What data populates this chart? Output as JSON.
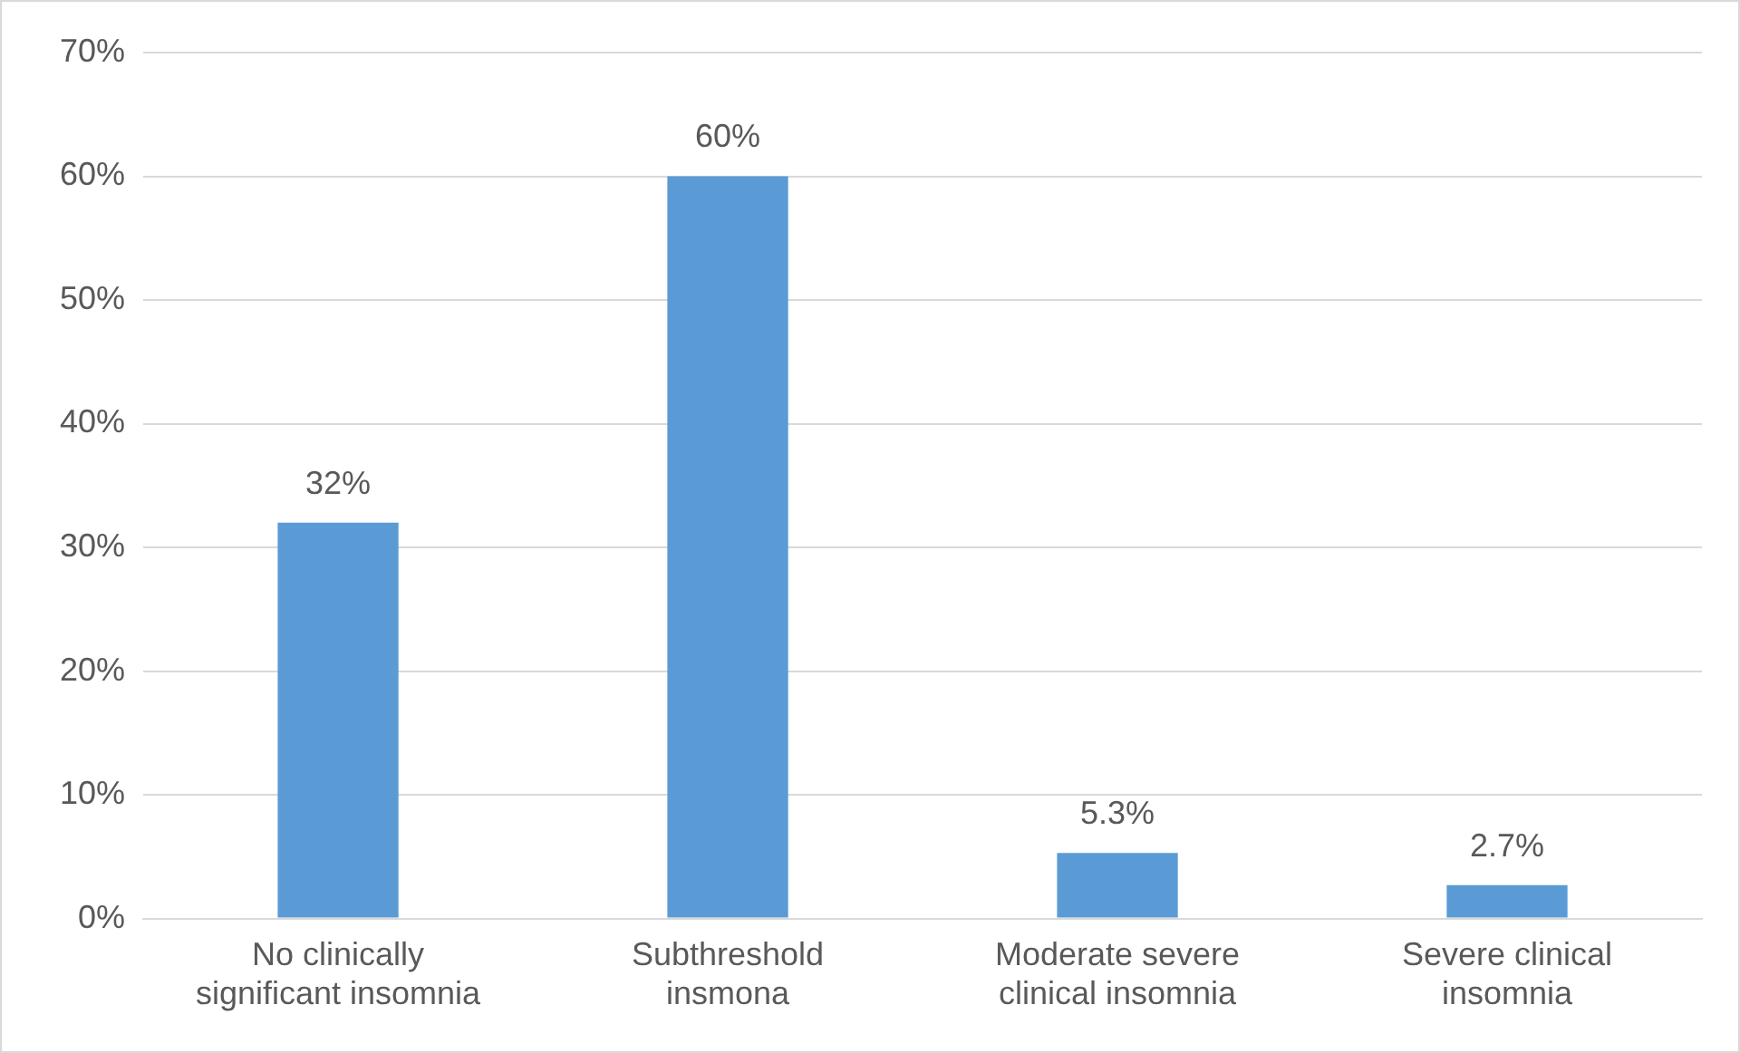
{
  "chart_data": {
    "type": "bar",
    "categories": [
      "No clinically significant insomnia",
      "Subthreshold insmona",
      "Moderate severe clinical insomnia",
      "Severe clinical insomnia"
    ],
    "values": [
      32,
      60,
      5.3,
      2.7
    ],
    "value_labels": [
      "32%",
      "60%",
      "5.3%",
      "2.7%"
    ],
    "color": "#5b9bd5",
    "ylim": [
      0,
      70
    ],
    "yticks": [
      {
        "value": 0,
        "label": "0%"
      },
      {
        "value": 10,
        "label": "10%"
      },
      {
        "value": 20,
        "label": "20%"
      },
      {
        "value": 30,
        "label": "30%"
      },
      {
        "value": 40,
        "label": "40%"
      },
      {
        "value": 50,
        "label": "50%"
      },
      {
        "value": 60,
        "label": "60%"
      },
      {
        "value": 70,
        "label": "70%"
      }
    ],
    "grid": "y",
    "legend": false
  }
}
